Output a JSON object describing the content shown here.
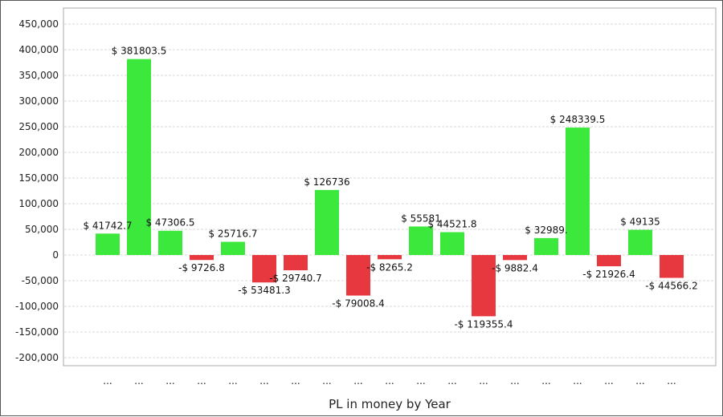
{
  "chart_data": {
    "type": "bar",
    "title": "",
    "xlabel": "PL in money by Year",
    "ylabel": "",
    "ylim": [
      -200000,
      450000
    ],
    "y_tick_step": 50000,
    "grid": true,
    "legend": "none",
    "categories": [
      "...",
      "...",
      "...",
      "...",
      "...",
      "...",
      "...",
      "...",
      "...",
      "...",
      "...",
      "...",
      "...",
      "...",
      "...",
      "...",
      "...",
      "...",
      "..."
    ],
    "values": [
      41742.7,
      381803.5,
      47306.5,
      -9726.8,
      25716.7,
      -53481.3,
      -29740.7,
      126736,
      -79008.4,
      -8265.2,
      55581,
      44521.8,
      -119355.4,
      -9882.4,
      32989,
      248339.5,
      -21926.4,
      49135,
      -44566.2
    ],
    "data_labels": [
      "$ 41742.7",
      "$ 381803.5",
      "$ 47306.5",
      "-$ 9726.8",
      "$ 25716.7",
      "-$ 53481.3",
      "-$ 29740.7",
      "$ 126736",
      "-$ 79008.4",
      "-$ 8265.2",
      "$ 55581",
      "$ 44521.8",
      "-$ 119355.4",
      "-$ 9882.4",
      "$ 32989.",
      "$ 248339.5",
      "-$ 21926.4",
      "$ 49135",
      "-$ 44566.2"
    ],
    "positive_color": "#3de83d",
    "negative_color": "#e8383f"
  }
}
